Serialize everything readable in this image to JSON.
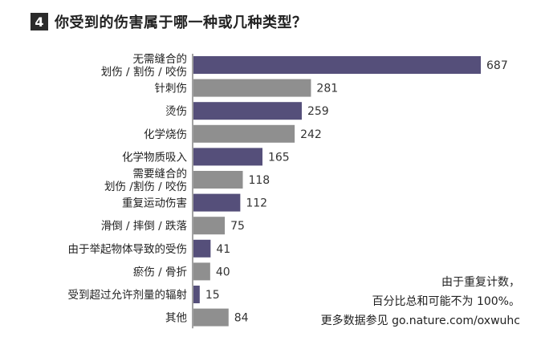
{
  "chart_data": {
    "type": "bar",
    "orientation": "horizontal",
    "title_number": "4",
    "title": "你受到的伤害属于哪一种或几种类型？",
    "categories": [
      [
        "无需缝合的",
        "划伤 / 割伤 / 咬伤"
      ],
      [
        "针刺伤"
      ],
      [
        "烫伤"
      ],
      [
        "化学烧伤"
      ],
      [
        "化学物质吸入"
      ],
      [
        "需要缝合的",
        "划伤 /割伤 / 咬伤"
      ],
      [
        "重复运动伤害"
      ],
      [
        "滑倒 / 摔倒 / 跌落"
      ],
      [
        "由于举起物体导致的受伤"
      ],
      [
        "瘀伤 / 骨折"
      ],
      [
        "受到超过允许剂量的辐射"
      ],
      [
        "其他"
      ]
    ],
    "values": [
      687,
      281,
      259,
      242,
      165,
      118,
      112,
      75,
      41,
      40,
      15,
      84
    ],
    "bar_colors": [
      "purple",
      "gray",
      "purple",
      "gray",
      "purple",
      "gray",
      "purple",
      "gray",
      "purple",
      "gray",
      "purple",
      "gray"
    ],
    "xlim": [
      0,
      687
    ],
    "grid": false,
    "legend": "none",
    "colors": {
      "purple": "#554f7a",
      "gray": "#8f8f8f"
    }
  },
  "note": {
    "line1": "由于重复计数，",
    "line2": "百分比总和可能不为 100%。",
    "line3": "更多数据参见 go.nature.com/oxwuhc"
  }
}
